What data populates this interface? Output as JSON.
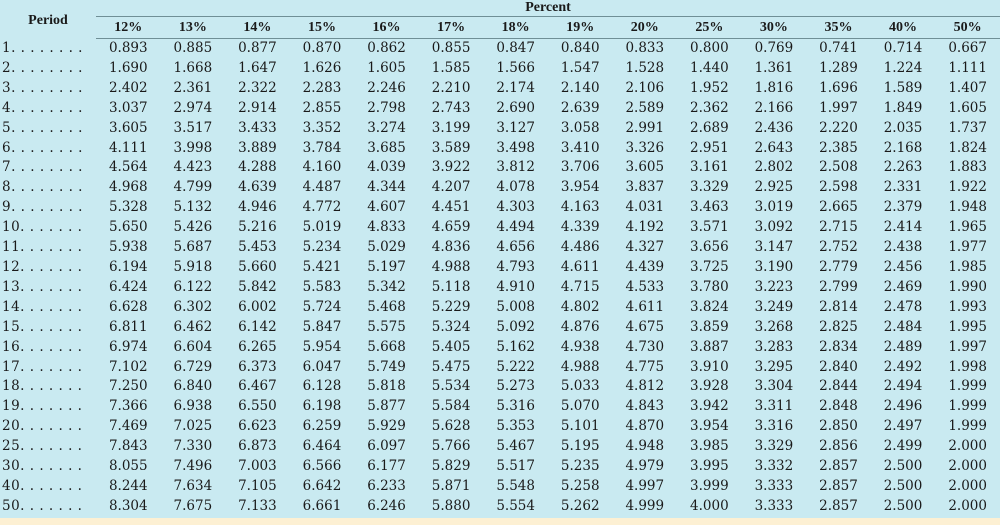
{
  "table": {
    "period_header": "Period",
    "group_header": "Percent",
    "rates": [
      "12%",
      "13%",
      "14%",
      "15%",
      "16%",
      "17%",
      "18%",
      "19%",
      "20%",
      "25%",
      "30%",
      "35%",
      "40%",
      "50%"
    ],
    "rows": [
      {
        "period": "1. . . . . . . .",
        "values": [
          "0.893",
          "0.885",
          "0.877",
          "0.870",
          "0.862",
          "0.855",
          "0.847",
          "0.840",
          "0.833",
          "0.800",
          "0.769",
          "0.741",
          "0.714",
          "0.667"
        ]
      },
      {
        "period": "2. . . . . . . .",
        "values": [
          "1.690",
          "1.668",
          "1.647",
          "1.626",
          "1.605",
          "1.585",
          "1.566",
          "1.547",
          "1.528",
          "1.440",
          "1.361",
          "1.289",
          "1.224",
          "1.111"
        ]
      },
      {
        "period": "3. . . . . . . .",
        "values": [
          "2.402",
          "2.361",
          "2.322",
          "2.283",
          "2.246",
          "2.210",
          "2.174",
          "2.140",
          "2.106",
          "1.952",
          "1.816",
          "1.696",
          "1.589",
          "1.407"
        ]
      },
      {
        "period": "4. . . . . . . .",
        "values": [
          "3.037",
          "2.974",
          "2.914",
          "2.855",
          "2.798",
          "2.743",
          "2.690",
          "2.639",
          "2.589",
          "2.362",
          "2.166",
          "1.997",
          "1.849",
          "1.605"
        ]
      },
      {
        "period": "5. . . . . . . .",
        "values": [
          "3.605",
          "3.517",
          "3.433",
          "3.352",
          "3.274",
          "3.199",
          "3.127",
          "3.058",
          "2.991",
          "2.689",
          "2.436",
          "2.220",
          "2.035",
          "1.737"
        ]
      },
      {
        "period": "6. . . . . . . .",
        "values": [
          "4.111",
          "3.998",
          "3.889",
          "3.784",
          "3.685",
          "3.589",
          "3.498",
          "3.410",
          "3.326",
          "2.951",
          "2.643",
          "2.385",
          "2.168",
          "1.824"
        ]
      },
      {
        "period": "7. . . . . . . .",
        "values": [
          "4.564",
          "4.423",
          "4.288",
          "4.160",
          "4.039",
          "3.922",
          "3.812",
          "3.706",
          "3.605",
          "3.161",
          "2.802",
          "2.508",
          "2.263",
          "1.883"
        ]
      },
      {
        "period": "8. . . . . . . .",
        "values": [
          "4.968",
          "4.799",
          "4.639",
          "4.487",
          "4.344",
          "4.207",
          "4.078",
          "3.954",
          "3.837",
          "3.329",
          "2.925",
          "2.598",
          "2.331",
          "1.922"
        ]
      },
      {
        "period": "9. . . . . . . .",
        "values": [
          "5.328",
          "5.132",
          "4.946",
          "4.772",
          "4.607",
          "4.451",
          "4.303",
          "4.163",
          "4.031",
          "3.463",
          "3.019",
          "2.665",
          "2.379",
          "1.948"
        ]
      },
      {
        "period": "10. . . . . . .",
        "values": [
          "5.650",
          "5.426",
          "5.216",
          "5.019",
          "4.833",
          "4.659",
          "4.494",
          "4.339",
          "4.192",
          "3.571",
          "3.092",
          "2.715",
          "2.414",
          "1.965"
        ]
      },
      {
        "period": "11. . . . . . .",
        "values": [
          "5.938",
          "5.687",
          "5.453",
          "5.234",
          "5.029",
          "4.836",
          "4.656",
          "4.486",
          "4.327",
          "3.656",
          "3.147",
          "2.752",
          "2.438",
          "1.977"
        ]
      },
      {
        "period": "12. . . . . . .",
        "values": [
          "6.194",
          "5.918",
          "5.660",
          "5.421",
          "5.197",
          "4.988",
          "4.793",
          "4.611",
          "4.439",
          "3.725",
          "3.190",
          "2.779",
          "2.456",
          "1.985"
        ]
      },
      {
        "period": "13. . . . . . .",
        "values": [
          "6.424",
          "6.122",
          "5.842",
          "5.583",
          "5.342",
          "5.118",
          "4.910",
          "4.715",
          "4.533",
          "3.780",
          "3.223",
          "2.799",
          "2.469",
          "1.990"
        ]
      },
      {
        "period": "14. . . . . . .",
        "values": [
          "6.628",
          "6.302",
          "6.002",
          "5.724",
          "5.468",
          "5.229",
          "5.008",
          "4.802",
          "4.611",
          "3.824",
          "3.249",
          "2.814",
          "2.478",
          "1.993"
        ]
      },
      {
        "period": "15. . . . . . .",
        "values": [
          "6.811",
          "6.462",
          "6.142",
          "5.847",
          "5.575",
          "5.324",
          "5.092",
          "4.876",
          "4.675",
          "3.859",
          "3.268",
          "2.825",
          "2.484",
          "1.995"
        ]
      },
      {
        "period": "16. . . . . . .",
        "values": [
          "6.974",
          "6.604",
          "6.265",
          "5.954",
          "5.668",
          "5.405",
          "5.162",
          "4.938",
          "4.730",
          "3.887",
          "3.283",
          "2.834",
          "2.489",
          "1.997"
        ]
      },
      {
        "period": "17. . . . . . .",
        "values": [
          "7.102",
          "6.729",
          "6.373",
          "6.047",
          "5.749",
          "5.475",
          "5.222",
          "4.988",
          "4.775",
          "3.910",
          "3.295",
          "2.840",
          "2.492",
          "1.998"
        ]
      },
      {
        "period": "18. . . . . . .",
        "values": [
          "7.250",
          "6.840",
          "6.467",
          "6.128",
          "5.818",
          "5.534",
          "5.273",
          "5.033",
          "4.812",
          "3.928",
          "3.304",
          "2.844",
          "2.494",
          "1.999"
        ]
      },
      {
        "period": "19. . . . . . .",
        "values": [
          "7.366",
          "6.938",
          "6.550",
          "6.198",
          "5.877",
          "5.584",
          "5.316",
          "5.070",
          "4.843",
          "3.942",
          "3.311",
          "2.848",
          "2.496",
          "1.999"
        ]
      },
      {
        "period": "20. . . . . . .",
        "values": [
          "7.469",
          "7.025",
          "6.623",
          "6.259",
          "5.929",
          "5.628",
          "5.353",
          "5.101",
          "4.870",
          "3.954",
          "3.316",
          "2.850",
          "2.497",
          "1.999"
        ]
      },
      {
        "period": "25. . . . . . .",
        "values": [
          "7.843",
          "7.330",
          "6.873",
          "6.464",
          "6.097",
          "5.766",
          "5.467",
          "5.195",
          "4.948",
          "3.985",
          "3.329",
          "2.856",
          "2.499",
          "2.000"
        ]
      },
      {
        "period": "30. . . . . . .",
        "values": [
          "8.055",
          "7.496",
          "7.003",
          "6.566",
          "6.177",
          "5.829",
          "5.517",
          "5.235",
          "4.979",
          "3.995",
          "3.332",
          "2.857",
          "2.500",
          "2.000"
        ]
      },
      {
        "period": "40. . . . . . .",
        "values": [
          "8.244",
          "7.634",
          "7.105",
          "6.642",
          "6.233",
          "5.871",
          "5.548",
          "5.258",
          "4.997",
          "3.999",
          "3.333",
          "2.857",
          "2.500",
          "2.000"
        ]
      },
      {
        "period": "50. . . . . . .",
        "values": [
          "8.304",
          "7.675",
          "7.133",
          "6.661",
          "6.246",
          "5.880",
          "5.554",
          "5.262",
          "4.999",
          "4.000",
          "3.333",
          "2.857",
          "2.500",
          "2.000"
        ]
      }
    ]
  }
}
